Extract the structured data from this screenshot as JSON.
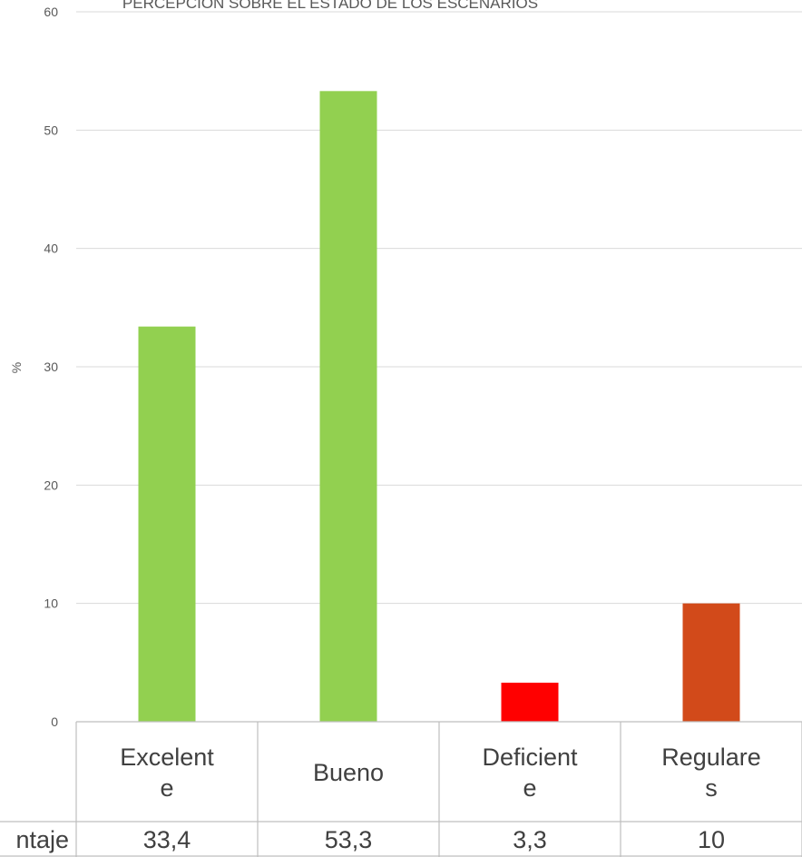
{
  "chart_data": {
    "type": "bar",
    "title": "PERCEPCIÓN SOBRE EL ESTADO DE LOS ESCENARIOS",
    "ylabel": "%",
    "ylim": [
      0,
      60
    ],
    "yticks": [
      0,
      10,
      20,
      30,
      40,
      50,
      60
    ],
    "grid": true,
    "categories": [
      {
        "lines": [
          "Excelent",
          "e"
        ]
      },
      {
        "lines": [
          "Bueno"
        ]
      },
      {
        "lines": [
          "Deficient",
          "e"
        ]
      },
      {
        "lines": [
          "Regulare",
          "s"
        ]
      }
    ],
    "series": [
      {
        "name": "Porcentaje",
        "values": [
          33.4,
          53.3,
          3.3,
          10
        ],
        "labels": [
          "33,4",
          "53,3",
          "3,3",
          "10"
        ],
        "colors": [
          "#92d050",
          "#92d050",
          "#ff0000",
          "#d24a1a"
        ]
      }
    ],
    "row_label_visible": "ntaje"
  }
}
